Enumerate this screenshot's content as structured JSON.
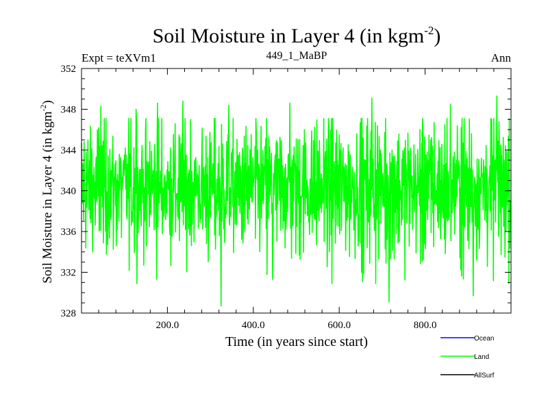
{
  "chart_data": {
    "type": "line",
    "title": "Soil Moisture in Layer 4 (in kgm",
    "title_sup": "-2",
    "title_close": ")",
    "left_label": "Expt = teXVm1",
    "center_label": "449_1_MaBP",
    "right_label": "Ann",
    "xlabel": "Time (in years since start)",
    "ylabel": "Soil Moisture in Layer 4 (in kgm",
    "ylabel_sup": "-2",
    "ylabel_close": ")",
    "xlim": [
      0,
      1000
    ],
    "ylim": [
      328,
      352
    ],
    "xticks": [
      200,
      400,
      600,
      800
    ],
    "xtick_labels": [
      "200.0",
      "400.0",
      "600.0",
      "800.0"
    ],
    "yticks": [
      328,
      332,
      336,
      340,
      344,
      348,
      352
    ],
    "ytick_labels": [
      "328",
      "332",
      "336",
      "340",
      "344",
      "348",
      "352"
    ],
    "legend_position": "bottom-right, outside plot",
    "series": [
      {
        "name": "Ocean",
        "color": "#0000ff",
        "values": []
      },
      {
        "name": "Land",
        "color": "#00ff00",
        "n_points": 1000,
        "x_start": 0,
        "x_step": 1,
        "mean": 340.3,
        "std": 3.5,
        "min": 328.7,
        "max": 349.3,
        "notable_points": [
          {
            "x": 45,
            "y": 348.3
          },
          {
            "x": 127,
            "y": 348.0
          },
          {
            "x": 177,
            "y": 348.6
          },
          {
            "x": 236,
            "y": 348.8
          },
          {
            "x": 325,
            "y": 328.7
          },
          {
            "x": 343,
            "y": 348.4
          },
          {
            "x": 445,
            "y": 331.3
          },
          {
            "x": 485,
            "y": 348.6
          },
          {
            "x": 676,
            "y": 349.1
          },
          {
            "x": 716,
            "y": 329.1
          },
          {
            "x": 859,
            "y": 348.5
          },
          {
            "x": 912,
            "y": 329.7
          },
          {
            "x": 967,
            "y": 349.3
          }
        ]
      },
      {
        "name": "AllSurf",
        "color": "#000000",
        "values": []
      }
    ]
  }
}
